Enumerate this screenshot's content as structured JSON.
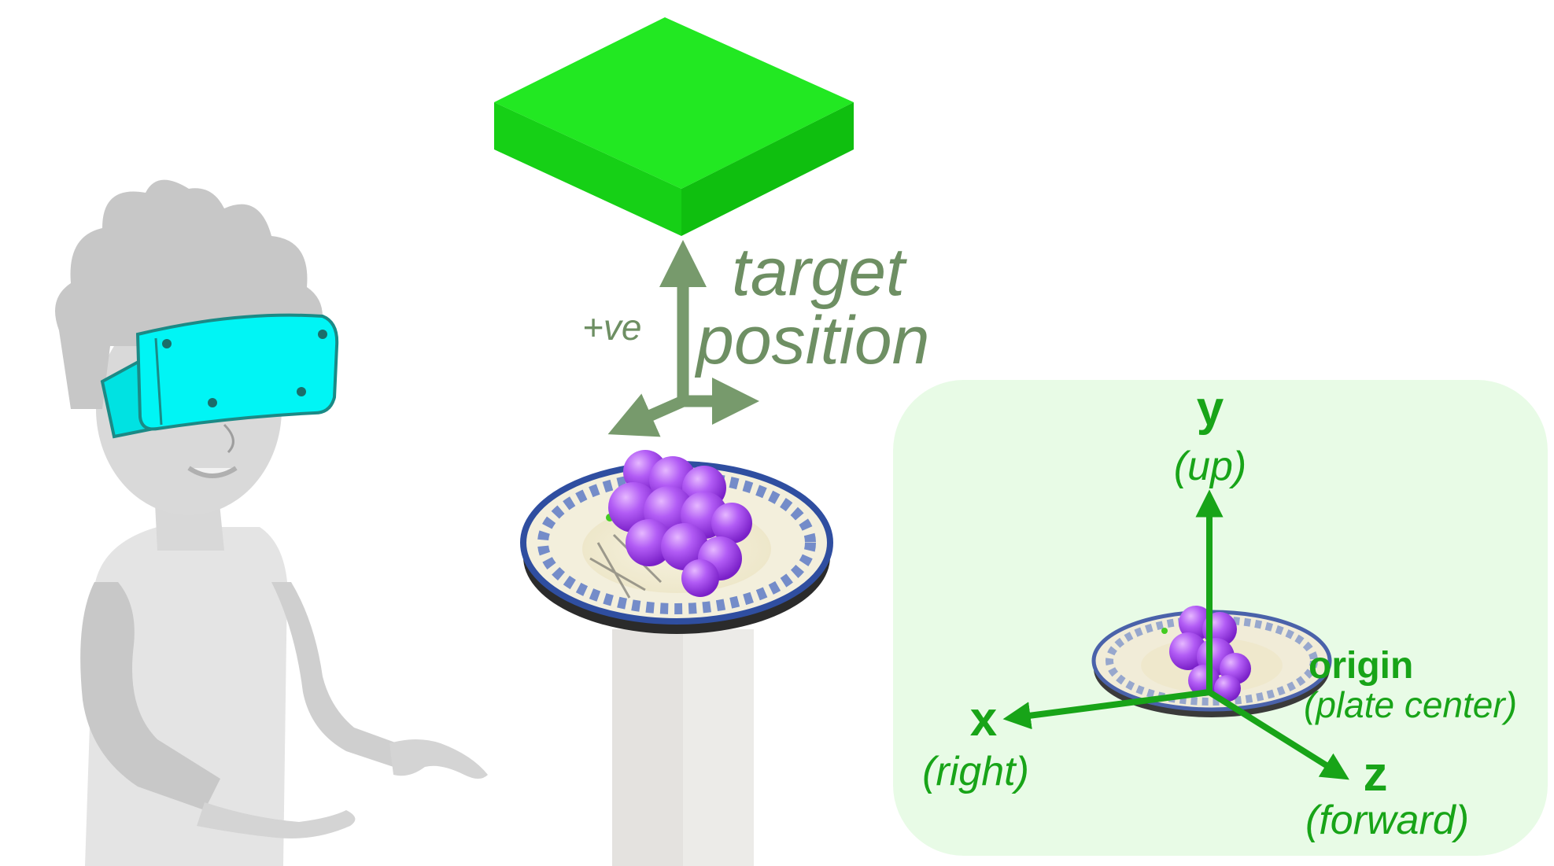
{
  "target_label": {
    "line1": "target",
    "line2": "position"
  },
  "positive_label": "+ve",
  "axes": {
    "y": {
      "letter": "y",
      "desc": "(up)"
    },
    "x": {
      "letter": "x",
      "desc": "(right)"
    },
    "z": {
      "letter": "z",
      "desc": "(forward)"
    }
  },
  "origin": {
    "label": "origin",
    "desc": "(plate center)"
  },
  "colors": {
    "target_box": "#22e822",
    "target_arrow": "#779a6c",
    "axis_green": "#18a418",
    "panel_bg": "#e8fbe6",
    "headset": "#00f5f5",
    "person_gray": "#c7c7c7",
    "grapes": "#a24ef0",
    "plate_rim": "#3554a8",
    "pedestal": "#e3e1de"
  },
  "icons": [
    "person-with-vr-headset-icon",
    "plate-with-grapes-icon",
    "pedestal-icon",
    "target-box-icon"
  ]
}
